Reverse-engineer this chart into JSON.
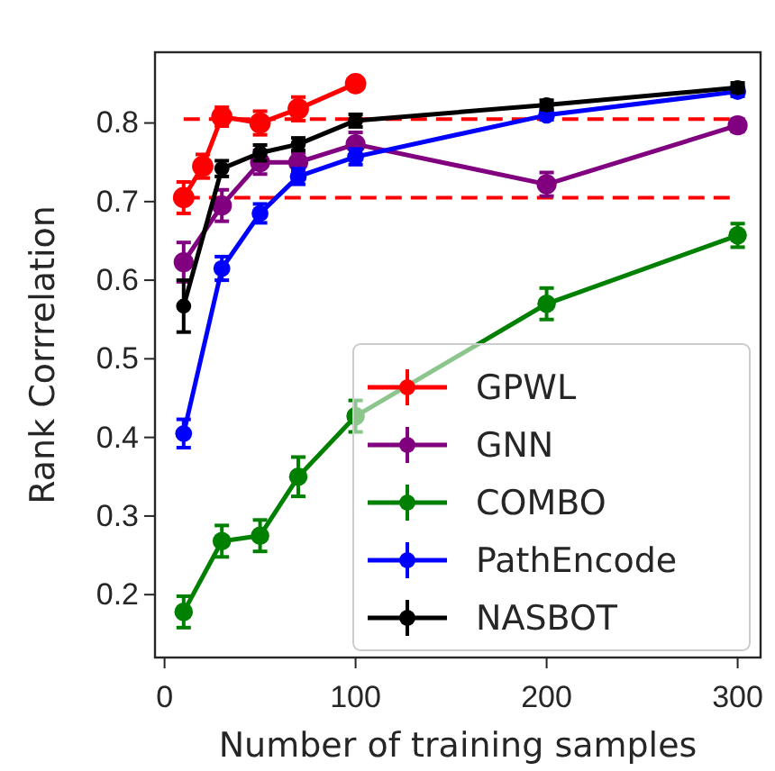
{
  "chart_data": {
    "type": "line",
    "xlabel": "Number of training samples",
    "ylabel": "Rank Corrrelation",
    "xlim": [
      -5,
      312
    ],
    "xticks": [
      0,
      100,
      200,
      300
    ],
    "ylim": [
      0.12,
      0.89
    ],
    "yticks": [
      0.2,
      0.3,
      0.4,
      0.5,
      0.6,
      0.7,
      0.8
    ],
    "marker": "circle",
    "legend": "bottom right",
    "grid": false,
    "series": [
      {
        "name": "GPWL",
        "color": "#ff0000",
        "x": [
          10,
          20,
          30,
          50,
          70,
          100
        ],
        "values": [
          0.705,
          0.745,
          0.808,
          0.8,
          0.818,
          0.85
        ],
        "errors": [
          0.02,
          0.015,
          0.012,
          0.015,
          0.015,
          null
        ]
      },
      {
        "name": "GNN",
        "color": "#800080",
        "x": [
          10,
          30,
          50,
          70,
          100,
          200,
          300
        ],
        "values": [
          0.623,
          0.695,
          0.75,
          0.75,
          0.773,
          0.722,
          0.797
        ],
        "errors": [
          0.025,
          0.02,
          0.015,
          0.012,
          0.015,
          0.015,
          0.008
        ]
      },
      {
        "name": "COMBO",
        "color": "#008000",
        "x": [
          10,
          30,
          50,
          70,
          100,
          200,
          300
        ],
        "values": [
          0.178,
          0.268,
          0.275,
          0.35,
          0.427,
          0.57,
          0.657
        ],
        "errors": [
          0.02,
          0.02,
          0.02,
          0.025,
          0.02,
          0.02,
          0.015
        ]
      },
      {
        "name": "PathEncode",
        "color": "#0000ff",
        "x": [
          10,
          30,
          50,
          70,
          100,
          200,
          300
        ],
        "values": [
          0.405,
          0.615,
          0.685,
          0.732,
          0.757,
          0.81,
          0.84
        ],
        "errors": [
          0.018,
          0.015,
          0.012,
          0.01,
          0.01,
          0.006,
          0.006
        ]
      },
      {
        "name": "NASBOT",
        "color": "#000000",
        "x": [
          10,
          30,
          50,
          70,
          100,
          200,
          300
        ],
        "values": [
          0.567,
          0.742,
          0.762,
          0.773,
          0.803,
          0.823,
          0.845
        ],
        "errors": [
          0.033,
          0.01,
          0.01,
          0.008,
          0.008,
          0.006,
          0.006
        ]
      }
    ],
    "ref_lines": [
      {
        "axis": "y",
        "value": 0.805,
        "color": "#ff0000",
        "line_style": "dashed"
      },
      {
        "axis": "y",
        "value": 0.705,
        "color": "#ff0000",
        "line_style": "dashed"
      }
    ]
  }
}
